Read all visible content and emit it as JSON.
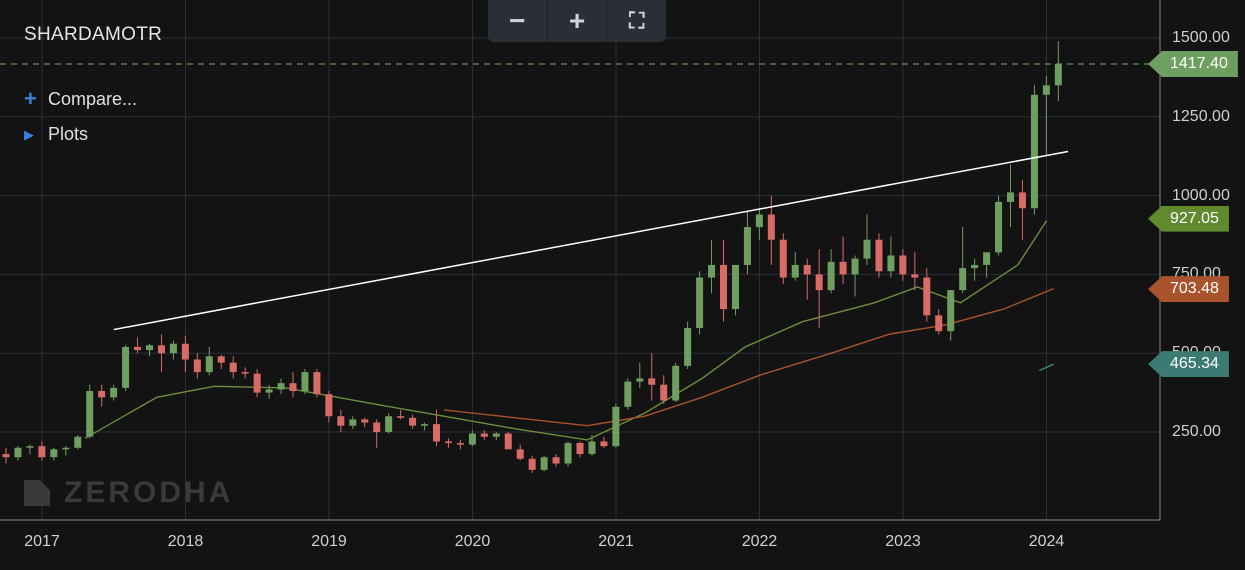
{
  "symbol": "SHARDAMOTR",
  "menu": {
    "compare": {
      "icon": "plus-icon",
      "label": "Compare..."
    },
    "plots": {
      "icon": "triangle-right-icon",
      "label": "Plots"
    }
  },
  "toolbar": {
    "zoom_out": "−",
    "zoom_in": "+",
    "fullscreen": "⛶"
  },
  "watermark": "ZERODHA",
  "colors": {
    "background": "#131313",
    "grid": "#2a3038",
    "up": "#6f9e61",
    "down": "#d96b67",
    "ma_green": "#6b8f3a",
    "ma_orange": "#a8532b",
    "ma_teal": "#3a8a80",
    "trendline": "#ffffff",
    "price_line": "#7fae6a"
  },
  "price_tags": [
    {
      "label": "1417.40",
      "color": "#6f9e61"
    },
    {
      "label": "927.05",
      "color": "#5f8b2e"
    },
    {
      "label": "703.48",
      "color": "#a8532b"
    },
    {
      "label": "465.34",
      "color": "#3b7b73"
    }
  ],
  "chart_data": {
    "type": "candlestick",
    "interval": "monthly",
    "y_ticks": [
      "250.00",
      "500.00",
      "750.00",
      "1000.00",
      "1250.00",
      "1500.00"
    ],
    "x_ticks": [
      "2017",
      "2018",
      "2019",
      "2020",
      "2021",
      "2022",
      "2023",
      "2024"
    ],
    "last_price": 1417.4,
    "candles": [
      [
        180,
        200,
        150,
        170
      ],
      [
        170,
        205,
        160,
        200
      ],
      [
        200,
        210,
        180,
        205
      ],
      [
        205,
        220,
        160,
        170
      ],
      [
        170,
        200,
        160,
        195
      ],
      [
        195,
        205,
        175,
        200
      ],
      [
        200,
        240,
        195,
        235
      ],
      [
        235,
        400,
        230,
        380
      ],
      [
        380,
        400,
        330,
        360
      ],
      [
        360,
        400,
        350,
        390
      ],
      [
        390,
        525,
        380,
        520
      ],
      [
        520,
        550,
        500,
        510
      ],
      [
        510,
        530,
        490,
        525
      ],
      [
        525,
        560,
        440,
        500
      ],
      [
        500,
        540,
        480,
        530
      ],
      [
        530,
        555,
        440,
        480
      ],
      [
        480,
        500,
        420,
        440
      ],
      [
        440,
        520,
        430,
        490
      ],
      [
        490,
        495,
        450,
        470
      ],
      [
        470,
        490,
        420,
        440
      ],
      [
        440,
        455,
        420,
        435
      ],
      [
        435,
        450,
        360,
        375
      ],
      [
        375,
        400,
        355,
        385
      ],
      [
        385,
        420,
        370,
        405
      ],
      [
        405,
        440,
        360,
        380
      ],
      [
        380,
        450,
        370,
        440
      ],
      [
        440,
        450,
        360,
        370
      ],
      [
        370,
        380,
        280,
        300
      ],
      [
        300,
        320,
        250,
        270
      ],
      [
        270,
        300,
        260,
        290
      ],
      [
        290,
        295,
        265,
        280
      ],
      [
        280,
        290,
        200,
        250
      ],
      [
        250,
        310,
        245,
        300
      ],
      [
        300,
        320,
        290,
        295
      ],
      [
        295,
        305,
        260,
        270
      ],
      [
        270,
        280,
        255,
        275
      ],
      [
        275,
        320,
        205,
        220
      ],
      [
        220,
        230,
        200,
        215
      ],
      [
        215,
        225,
        195,
        210
      ],
      [
        210,
        255,
        205,
        245
      ],
      [
        245,
        255,
        225,
        235
      ],
      [
        235,
        250,
        225,
        245
      ],
      [
        245,
        250,
        205,
        195
      ],
      [
        195,
        210,
        160,
        165
      ],
      [
        165,
        175,
        120,
        130
      ],
      [
        130,
        175,
        125,
        170
      ],
      [
        170,
        180,
        140,
        150
      ],
      [
        150,
        220,
        140,
        215
      ],
      [
        215,
        220,
        170,
        180
      ],
      [
        180,
        240,
        175,
        220
      ],
      [
        220,
        235,
        200,
        205
      ],
      [
        205,
        340,
        200,
        330
      ],
      [
        330,
        420,
        320,
        410
      ],
      [
        410,
        470,
        390,
        420
      ],
      [
        420,
        500,
        350,
        400
      ],
      [
        400,
        430,
        340,
        350
      ],
      [
        350,
        470,
        345,
        460
      ],
      [
        460,
        600,
        450,
        580
      ],
      [
        580,
        760,
        560,
        740
      ],
      [
        740,
        860,
        690,
        780
      ],
      [
        780,
        860,
        600,
        640
      ],
      [
        640,
        780,
        620,
        780
      ],
      [
        780,
        950,
        750,
        900
      ],
      [
        900,
        960,
        860,
        940
      ],
      [
        940,
        1000,
        780,
        860
      ],
      [
        860,
        880,
        720,
        740
      ],
      [
        740,
        820,
        730,
        780
      ],
      [
        780,
        800,
        670,
        750
      ],
      [
        750,
        830,
        580,
        700
      ],
      [
        700,
        830,
        690,
        790
      ],
      [
        790,
        870,
        720,
        750
      ],
      [
        750,
        810,
        680,
        800
      ],
      [
        800,
        940,
        780,
        860
      ],
      [
        860,
        880,
        740,
        760
      ],
      [
        760,
        870,
        740,
        810
      ],
      [
        810,
        830,
        730,
        750
      ],
      [
        750,
        820,
        700,
        740
      ],
      [
        740,
        770,
        600,
        620
      ],
      [
        620,
        640,
        560,
        570
      ],
      [
        570,
        700,
        540,
        700
      ],
      [
        700,
        900,
        690,
        770
      ],
      [
        770,
        800,
        730,
        780
      ],
      [
        780,
        820,
        740,
        820
      ],
      [
        820,
        1000,
        810,
        980
      ],
      [
        980,
        1100,
        900,
        1010
      ],
      [
        1010,
        1050,
        860,
        960
      ],
      [
        960,
        1350,
        940,
        1320
      ],
      [
        1320,
        1380,
        1130,
        1350
      ],
      [
        1350,
        1490,
        1300,
        1417.4
      ]
    ],
    "trendline": {
      "from": {
        "x": 2017.5,
        "y": 575
      },
      "to": {
        "x": 2024.15,
        "y": 1140
      }
    },
    "ma_series": [
      {
        "color": "#6b8f3a",
        "points": [
          [
            2017.3,
            230
          ],
          [
            2017.8,
            360
          ],
          [
            2018.2,
            395
          ],
          [
            2018.7,
            390
          ],
          [
            2019.3,
            340
          ],
          [
            2019.8,
            300
          ],
          [
            2020.3,
            260
          ],
          [
            2020.8,
            225
          ],
          [
            2021.2,
            310
          ],
          [
            2021.6,
            420
          ],
          [
            2021.9,
            520
          ],
          [
            2022.3,
            600
          ],
          [
            2022.8,
            660
          ],
          [
            2023.1,
            710
          ],
          [
            2023.4,
            660
          ],
          [
            2023.8,
            780
          ],
          [
            2024.0,
            920
          ]
        ]
      },
      {
        "color": "#a8532b",
        "points": [
          [
            2019.8,
            320
          ],
          [
            2020.3,
            295
          ],
          [
            2020.8,
            270
          ],
          [
            2021.2,
            300
          ],
          [
            2021.6,
            360
          ],
          [
            2022.0,
            430
          ],
          [
            2022.5,
            500
          ],
          [
            2022.9,
            560
          ],
          [
            2023.3,
            590
          ],
          [
            2023.7,
            640
          ],
          [
            2024.05,
            705
          ]
        ]
      },
      {
        "color": "#3a8a80",
        "points": [
          [
            2023.95,
            445
          ],
          [
            2024.05,
            465
          ]
        ]
      }
    ]
  }
}
